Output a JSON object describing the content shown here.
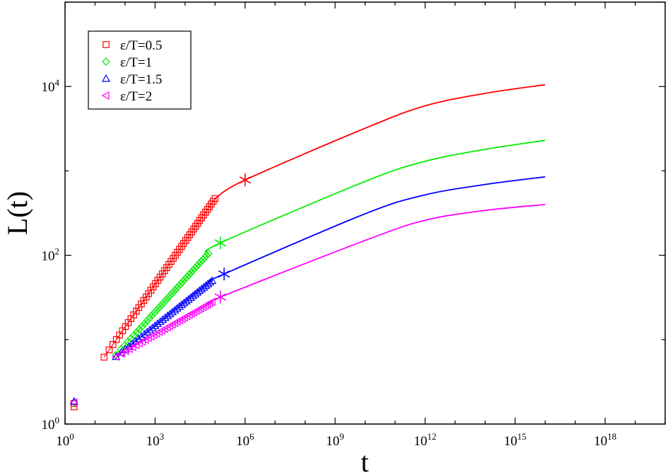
{
  "chart_data": {
    "type": "scatter",
    "xlabel": "t",
    "ylabel": "L(t)",
    "xscale": "log",
    "yscale": "log",
    "xlim": [
      1,
      1e+20
    ],
    "ylim": [
      1,
      100000
    ],
    "xticks": [
      {
        "value": 1,
        "base": "10",
        "exp": "0"
      },
      {
        "value": 1000,
        "base": "10",
        "exp": "3"
      },
      {
        "value": 1000000,
        "base": "10",
        "exp": "6"
      },
      {
        "value": 1000000000,
        "base": "10",
        "exp": "9"
      },
      {
        "value": 1000000000000,
        "base": "10",
        "exp": "12"
      },
      {
        "value": 1000000000000000,
        "base": "10",
        "exp": "15"
      },
      {
        "value": 1000000000000000000,
        "base": "10",
        "exp": "18"
      }
    ],
    "yticks": [
      {
        "value": 1,
        "base": "10",
        "exp": "0"
      },
      {
        "value": 100,
        "base": "10",
        "exp": "2"
      },
      {
        "value": 10000,
        "base": "10",
        "exp": "4"
      }
    ],
    "grid": false,
    "legend_position": "top-left",
    "series": [
      {
        "name": "ε/T=0.5",
        "color": "#ff0000",
        "marker": "square",
        "outliers": [
          {
            "x": 2,
            "y": 1.6
          },
          {
            "x": 2,
            "y": 1.75
          }
        ],
        "points": {
          "t_start": 20,
          "t_end": 100000,
          "y_start": 6.2,
          "y_end": 470,
          "count": 48
        },
        "fit": [
          [
            100000,
            470
          ],
          [
            1000000,
            780
          ],
          [
            10000000000,
            3200
          ],
          [
            1000000000000,
            5900
          ],
          [
            100000000000000,
            8300
          ],
          [
            10000000000000000,
            10500
          ]
        ],
        "star": {
          "x": 1000000,
          "y": 780
        }
      },
      {
        "name": "ε/T=1",
        "color": "#00ee00",
        "marker": "diamond",
        "outliers": [
          {
            "x": 2,
            "y": 1.8
          }
        ],
        "points": {
          "t_start": 50,
          "t_end": 60000,
          "y_start": 6.6,
          "y_end": 105,
          "count": 40
        },
        "fit": [
          [
            60000,
            105
          ],
          [
            150000,
            140
          ],
          [
            10000000000,
            750
          ],
          [
            1000000000000,
            1300
          ],
          [
            100000000000000,
            1800
          ],
          [
            10000000000000000,
            2300
          ]
        ],
        "star": {
          "x": 150000,
          "y": 140
        }
      },
      {
        "name": "ε/T=1.5",
        "color": "#0000ff",
        "marker": "triangle-up",
        "outliers": [
          {
            "x": 2,
            "y": 1.85
          }
        ],
        "points": {
          "t_start": 50,
          "t_end": 80000,
          "y_start": 6.3,
          "y_end": 50,
          "count": 38
        },
        "fit": [
          [
            80000,
            50
          ],
          [
            200000,
            60
          ],
          [
            10000000000,
            310
          ],
          [
            1000000000000,
            520
          ],
          [
            100000000000000,
            690
          ],
          [
            10000000000000000,
            850
          ]
        ],
        "star": {
          "x": 200000,
          "y": 60
        }
      },
      {
        "name": "ε/T=2",
        "color": "#ff00ff",
        "marker": "triangle-left",
        "outliers": [
          {
            "x": 2,
            "y": 1.8
          }
        ],
        "points": {
          "t_start": 50,
          "t_end": 80000,
          "y_start": 6.3,
          "y_end": 28,
          "count": 36
        },
        "fit": [
          [
            80000,
            28
          ],
          [
            150000,
            32
          ],
          [
            10000000000,
            150
          ],
          [
            1000000000000,
            260
          ],
          [
            100000000000000,
            340
          ],
          [
            10000000000000000,
            400
          ]
        ],
        "star": {
          "x": 150000,
          "y": 32
        }
      }
    ]
  }
}
